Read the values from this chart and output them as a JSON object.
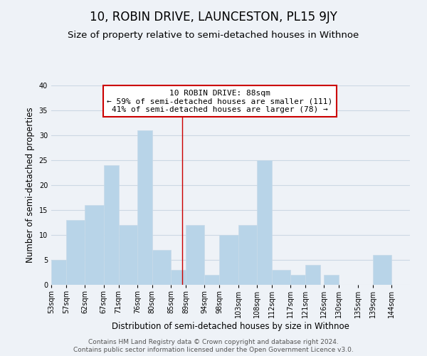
{
  "title": "10, ROBIN DRIVE, LAUNCESTON, PL15 9JY",
  "subtitle": "Size of property relative to semi-detached houses in Withnoe",
  "xlabel": "Distribution of semi-detached houses by size in Withnoe",
  "ylabel": "Number of semi-detached properties",
  "footer_line1": "Contains HM Land Registry data © Crown copyright and database right 2024.",
  "footer_line2": "Contains public sector information licensed under the Open Government Licence v3.0.",
  "annotation_title": "10 ROBIN DRIVE: 88sqm",
  "annotation_line1": "← 59% of semi-detached houses are smaller (111)",
  "annotation_line2": "41% of semi-detached houses are larger (78) →",
  "property_line_x": 88,
  "bar_left_edges": [
    53,
    57,
    62,
    67,
    71,
    76,
    80,
    85,
    89,
    94,
    98,
    103,
    108,
    112,
    117,
    121,
    126,
    130,
    135,
    139
  ],
  "bar_widths": [
    4,
    5,
    5,
    4,
    5,
    4,
    5,
    4,
    5,
    4,
    5,
    5,
    4,
    5,
    4,
    4,
    4,
    5,
    4,
    5
  ],
  "bar_heights": [
    5,
    13,
    16,
    24,
    12,
    31,
    7,
    3,
    12,
    2,
    10,
    12,
    25,
    3,
    2,
    4,
    2,
    0,
    0,
    6
  ],
  "bar_color": "#b8d4e8",
  "bar_edge_color": "#c8dae8",
  "ylim": [
    0,
    40
  ],
  "yticks": [
    0,
    5,
    10,
    15,
    20,
    25,
    30,
    35,
    40
  ],
  "xlim": [
    53,
    149
  ],
  "x_tick_labels": [
    "53sqm",
    "57sqm",
    "62sqm",
    "67sqm",
    "71sqm",
    "76sqm",
    "80sqm",
    "85sqm",
    "89sqm",
    "94sqm",
    "98sqm",
    "103sqm",
    "108sqm",
    "112sqm",
    "117sqm",
    "121sqm",
    "126sqm",
    "130sqm",
    "135sqm",
    "139sqm",
    "144sqm"
  ],
  "x_tick_positions": [
    53,
    57,
    62,
    67,
    71,
    76,
    80,
    85,
    89,
    94,
    98,
    103,
    108,
    112,
    117,
    121,
    126,
    130,
    135,
    139,
    144
  ],
  "grid_color": "#ccd8e4",
  "background_color": "#eef2f7",
  "annotation_box_color": "#ffffff",
  "annotation_box_edge": "#cc0000",
  "property_line_color": "#cc0000",
  "title_fontsize": 12,
  "subtitle_fontsize": 9.5,
  "axis_label_fontsize": 8.5,
  "tick_fontsize": 7,
  "annotation_fontsize": 8,
  "footer_fontsize": 6.5
}
